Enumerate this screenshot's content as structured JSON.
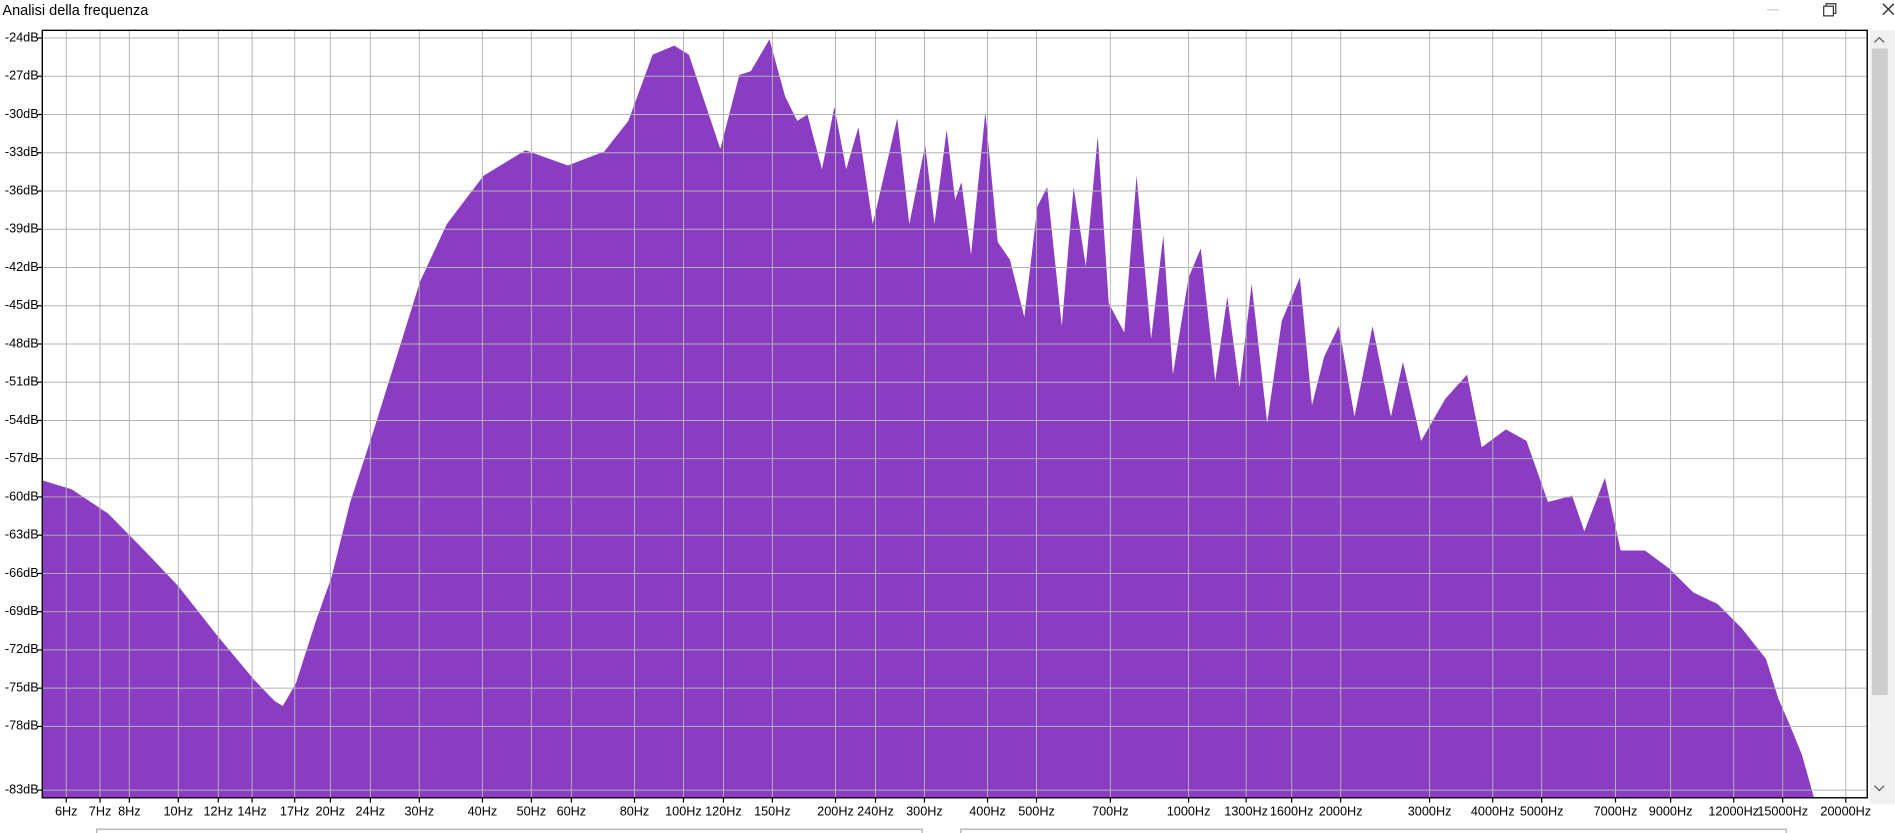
{
  "window": {
    "title": "Analisi della frequenza"
  },
  "chart_data": {
    "type": "area",
    "color": "#8a3cc2",
    "log_x": true,
    "grid": true,
    "xlim": [
      5.38,
      22050
    ],
    "ylim": [
      -83.6,
      -23.4
    ],
    "x": [
      5.38,
      6.15,
      7.26,
      8.57,
      10,
      11.9,
      14.1,
      15.5,
      16.1,
      17.1,
      18.7,
      20.1,
      21.9,
      24.4,
      27.3,
      30.1,
      34,
      40.2,
      48.7,
      59,
      69.7,
      77.8,
      86.9,
      95.9,
      102.5,
      118.3,
      129,
      136,
      148,
      159,
      168,
      176,
      188,
      199,
      210,
      222,
      237,
      265,
      280,
      301,
      314,
      332,
      345,
      355,
      371,
      396,
      419,
      443,
      473,
      502,
      525,
      561,
      592,
      626,
      661,
      695,
      746,
      789,
      843,
      891,
      931,
      1000,
      1057,
      1129,
      1193,
      1261,
      1333,
      1431,
      1529,
      1661,
      1755,
      1855,
      1983,
      2130,
      2313,
      2515,
      2657,
      2886,
      3223,
      3559,
      3804,
      4248,
      4666,
      5146,
      5745,
      6073,
      6672,
      7166,
      8004,
      8939,
      9985,
      11150,
      12450,
      13900,
      14700,
      15500,
      16370,
      17300
    ],
    "values": [
      -58.7,
      -59.4,
      -61.3,
      -64.2,
      -67.0,
      -70.8,
      -74.3,
      -76.0,
      -76.4,
      -74.6,
      -69.8,
      -66.3,
      -60.4,
      -54.7,
      -48.5,
      -43.1,
      -38.6,
      -34.8,
      -32.8,
      -34.0,
      -32.9,
      -30.5,
      -25.3,
      -24.6,
      -25.3,
      -32.7,
      -26.9,
      -26.6,
      -24.1,
      -28.6,
      -30.5,
      -30.0,
      -34.3,
      -29.4,
      -34.3,
      -31.0,
      -38.6,
      -30.3,
      -38.6,
      -32.4,
      -38.6,
      -31.2,
      -36.7,
      -35.3,
      -41.0,
      -29.8,
      -40.0,
      -41.4,
      -45.9,
      -37.2,
      -35.7,
      -46.6,
      -35.7,
      -41.9,
      -31.7,
      -44.8,
      -47.1,
      -34.8,
      -47.6,
      -39.5,
      -50.4,
      -42.8,
      -40.5,
      -50.9,
      -44.3,
      -51.4,
      -43.3,
      -54.2,
      -46.2,
      -42.8,
      -52.8,
      -49.0,
      -46.6,
      -53.7,
      -46.6,
      -53.7,
      -49.4,
      -55.6,
      -52.3,
      -50.4,
      -56.1,
      -54.7,
      -55.6,
      -60.4,
      -59.9,
      -62.7,
      -58.5,
      -64.2,
      -64.2,
      -65.6,
      -67.5,
      -68.4,
      -70.3,
      -72.7,
      -75.8,
      -77.9,
      -80.2,
      -83.6
    ],
    "yticks": [
      {
        "value": -24,
        "label": "-24dB"
      },
      {
        "value": -27,
        "label": "-27dB"
      },
      {
        "value": -30,
        "label": "-30dB"
      },
      {
        "value": -33,
        "label": "-33dB"
      },
      {
        "value": -36,
        "label": "-36dB"
      },
      {
        "value": -39,
        "label": "-39dB"
      },
      {
        "value": -42,
        "label": "-42dB"
      },
      {
        "value": -45,
        "label": "-45dB"
      },
      {
        "value": -48,
        "label": "-48dB"
      },
      {
        "value": -51,
        "label": "-51dB"
      },
      {
        "value": -54,
        "label": "-54dB"
      },
      {
        "value": -57,
        "label": "-57dB"
      },
      {
        "value": -60,
        "label": "-60dB"
      },
      {
        "value": -63,
        "label": "-63dB"
      },
      {
        "value": -66,
        "label": "-66dB"
      },
      {
        "value": -69,
        "label": "-69dB"
      },
      {
        "value": -72,
        "label": "-72dB"
      },
      {
        "value": -75,
        "label": "-75dB"
      },
      {
        "value": -78,
        "label": "-78dB"
      },
      {
        "value": -83,
        "label": "-83dB"
      }
    ],
    "xticks": [
      {
        "value": 6,
        "label": "6Hz"
      },
      {
        "value": 7,
        "label": "7Hz"
      },
      {
        "value": 8,
        "label": "8Hz"
      },
      {
        "value": 10,
        "label": "10Hz"
      },
      {
        "value": 12,
        "label": "12Hz"
      },
      {
        "value": 14,
        "label": "14Hz"
      },
      {
        "value": 17,
        "label": "17Hz"
      },
      {
        "value": 20,
        "label": "20Hz"
      },
      {
        "value": 24,
        "label": "24Hz"
      },
      {
        "value": 30,
        "label": "30Hz"
      },
      {
        "value": 40,
        "label": "40Hz"
      },
      {
        "value": 50,
        "label": "50Hz"
      },
      {
        "value": 60,
        "label": "60Hz"
      },
      {
        "value": 80,
        "label": "80Hz"
      },
      {
        "value": 100,
        "label": "100Hz"
      },
      {
        "value": 120,
        "label": "120Hz"
      },
      {
        "value": 150,
        "label": "150Hz"
      },
      {
        "value": 200,
        "label": "200Hz"
      },
      {
        "value": 240,
        "label": "240Hz"
      },
      {
        "value": 300,
        "label": "300Hz"
      },
      {
        "value": 400,
        "label": "400Hz"
      },
      {
        "value": 500,
        "label": "500Hz"
      },
      {
        "value": 700,
        "label": "700Hz"
      },
      {
        "value": 1000,
        "label": "1000Hz"
      },
      {
        "value": 1300,
        "label": "1300Hz"
      },
      {
        "value": 1600,
        "label": "1600Hz"
      },
      {
        "value": 2000,
        "label": "2000Hz"
      },
      {
        "value": 3000,
        "label": "3000Hz"
      },
      {
        "value": 4000,
        "label": "4000Hz"
      },
      {
        "value": 5000,
        "label": "5000Hz"
      },
      {
        "value": 7000,
        "label": "7000Hz"
      },
      {
        "value": 9000,
        "label": "9000Hz"
      },
      {
        "value": 12000,
        "label": "12000Hz"
      },
      {
        "value": 15000,
        "label": "15000Hz"
      },
      {
        "value": 20000,
        "label": "20000Hz"
      }
    ]
  }
}
